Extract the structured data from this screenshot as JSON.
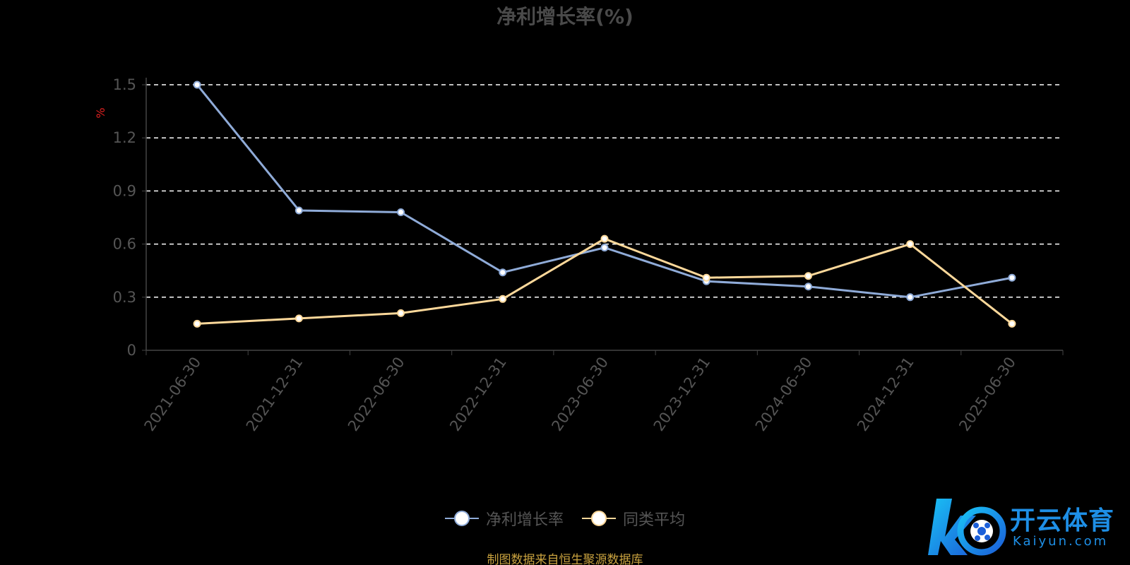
{
  "chart_data": {
    "type": "line",
    "title": "净利增长率(%)",
    "ylabel": "%",
    "xlabel": "",
    "categories": [
      "2021-06-30",
      "2021-12-31",
      "2022-06-30",
      "2022-12-31",
      "2023-06-30",
      "2023-12-31",
      "2024-06-30",
      "2024-12-31",
      "2025-06-30"
    ],
    "ylim": [
      0,
      1.5
    ],
    "yticks": [
      "0",
      "0.3",
      "0.6",
      "0.9",
      "1.2",
      "1.5"
    ],
    "grid": true,
    "legend_position": "bottom",
    "series": [
      {
        "name": "净利增长率",
        "color": "#8fabd8",
        "values": [
          1.5,
          0.79,
          0.78,
          0.44,
          0.58,
          0.39,
          0.36,
          0.3,
          0.41
        ]
      },
      {
        "name": "同类平均",
        "color": "#fcd89a",
        "values": [
          0.15,
          0.18,
          0.21,
          0.29,
          0.63,
          0.41,
          0.42,
          0.6,
          0.15
        ]
      }
    ]
  },
  "source_note": "制图数据来自恒生聚源数据库",
  "watermark": {
    "brand": "开云体育",
    "site": "Kaiyun.com"
  }
}
